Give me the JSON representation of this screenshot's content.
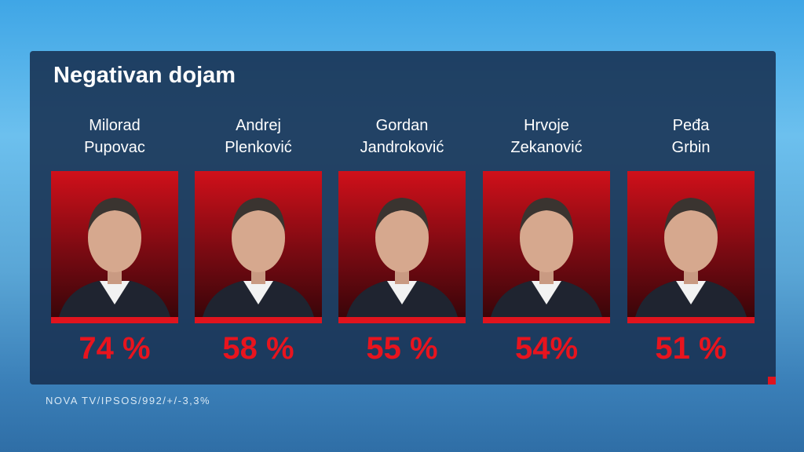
{
  "title": "Negativan dojam",
  "people": [
    {
      "name": [
        "Milorad",
        "Pupovac"
      ],
      "value": "74 %"
    },
    {
      "name": [
        "Andrej",
        "Plenković"
      ],
      "value": "58 %"
    },
    {
      "name": [
        "Gordan",
        "Jandroković"
      ],
      "value": "55 %"
    },
    {
      "name": [
        "Hrvoje",
        "Zekanović"
      ],
      "value": "54%"
    },
    {
      "name": [
        "Peđa",
        "Grbin"
      ],
      "value": "51 %"
    }
  ],
  "footer": "NOVA TV/IPSOS/992/+/-3,3%"
}
